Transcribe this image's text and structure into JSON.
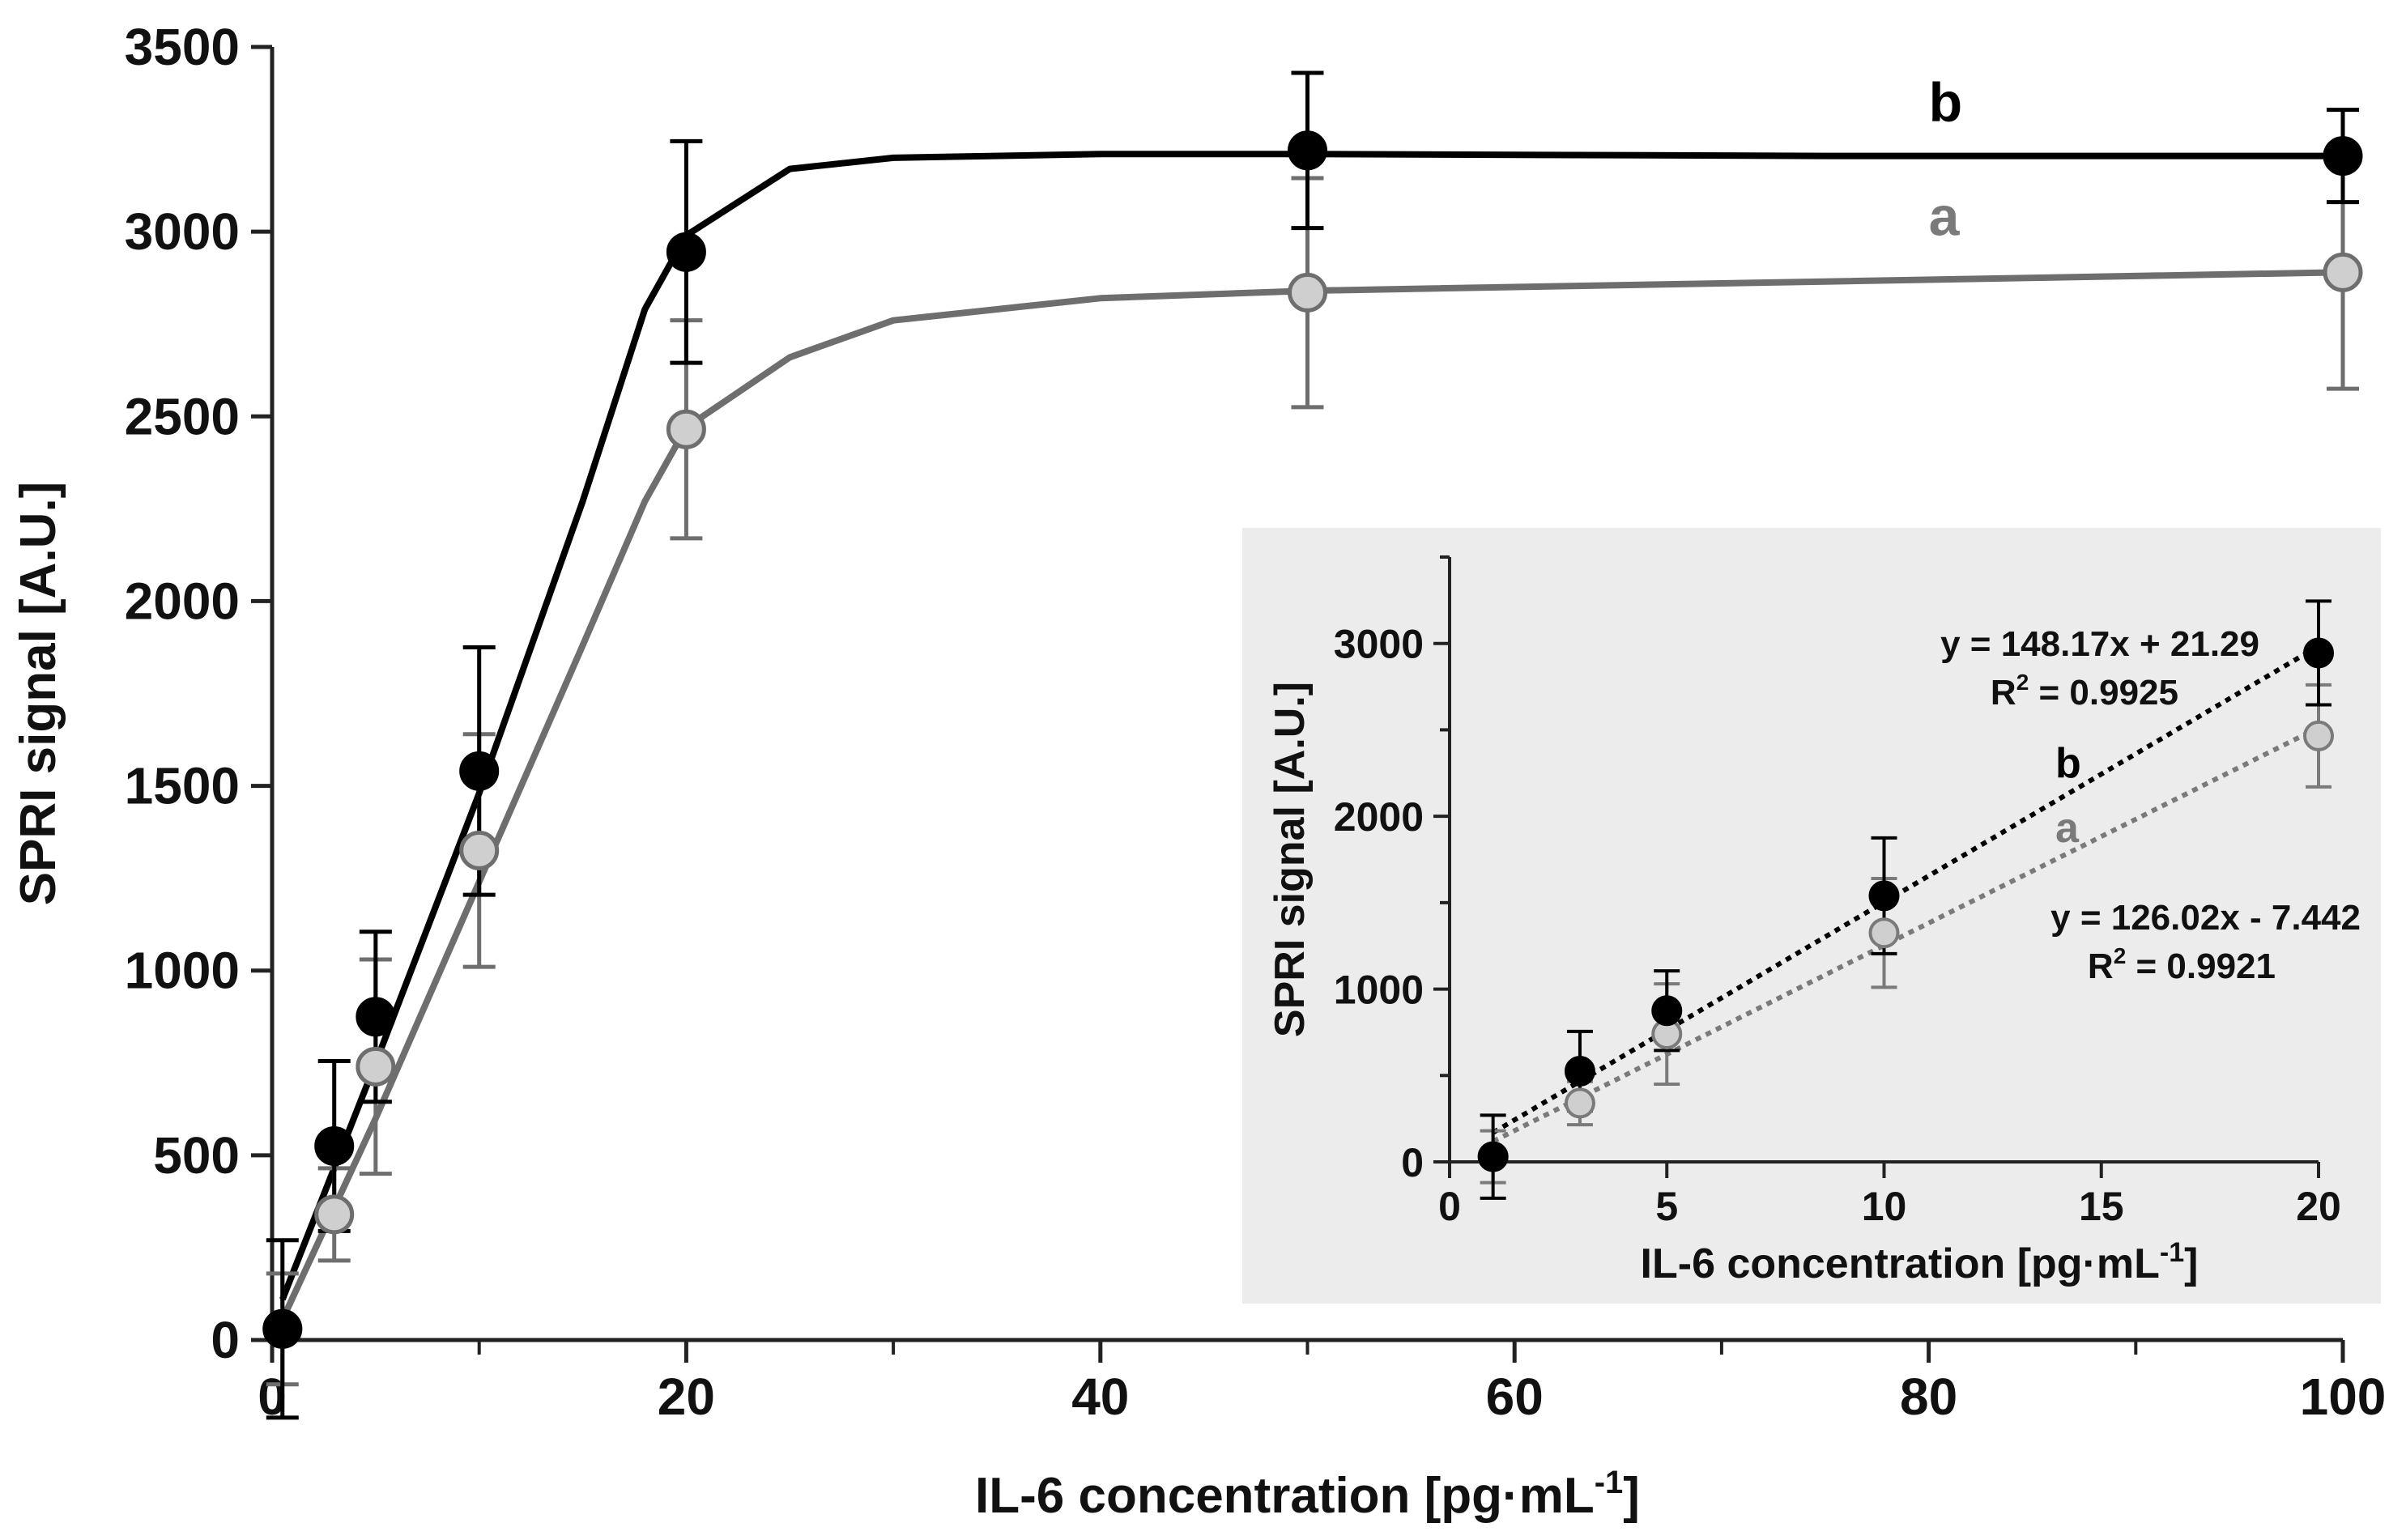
{
  "chart_data": [
    {
      "type": "scatter",
      "title": "",
      "xlabel": "IL-6 concentration [pg·mL",
      "xlabel_sup": "-1",
      "xlabel_end": "]",
      "ylabel": "SPRI signal [A.U.]",
      "xlim": [
        0,
        100
      ],
      "ylim": [
        0,
        3500
      ],
      "xticks": [
        0,
        20,
        40,
        60,
        80,
        100
      ],
      "xticks_minor": [
        10,
        30,
        50,
        70,
        90
      ],
      "yticks": [
        0,
        500,
        1000,
        1500,
        2000,
        2500,
        3000,
        3500
      ],
      "xtick_labels": [
        "0",
        "20",
        "40",
        "60",
        "80",
        "100"
      ],
      "ytick_labels": [
        "0",
        "500",
        "1000",
        "1500",
        "2000",
        "2500",
        "3000",
        "3500"
      ],
      "series": [
        {
          "name": "b",
          "color": "#000000",
          "marker_fill": "#000000",
          "x": [
            0.5,
            3,
            5,
            10,
            20,
            50,
            100
          ],
          "y": [
            30,
            525,
            875,
            1540,
            2945,
            3220,
            3205
          ],
          "err": [
            240,
            230,
            230,
            335,
            300,
            210,
            125
          ],
          "fit": [
            [
              0.5,
              110
            ],
            [
              5,
              750
            ],
            [
              10,
              1480
            ],
            [
              15,
              2270
            ],
            [
              18,
              2790
            ],
            [
              20,
              2990
            ],
            [
              25,
              3170
            ],
            [
              30,
              3200
            ],
            [
              40,
              3210
            ],
            [
              50,
              3210
            ],
            [
              75,
              3205
            ],
            [
              100,
              3205
            ]
          ]
        },
        {
          "name": "a",
          "color": "#6e6e6e",
          "marker_fill": "#cfcfcf",
          "x": [
            0.5,
            3,
            5,
            10,
            20,
            50,
            100
          ],
          "y": [
            30,
            340,
            740,
            1325,
            2465,
            2835,
            2890
          ],
          "err": [
            150,
            125,
            290,
            315,
            295,
            310,
            315
          ],
          "fit": [
            [
              0.5,
              55
            ],
            [
              5,
              600
            ],
            [
              10,
              1240
            ],
            [
              15,
              1880
            ],
            [
              18,
              2270
            ],
            [
              20,
              2470
            ],
            [
              25,
              2660
            ],
            [
              30,
              2760
            ],
            [
              40,
              2820
            ],
            [
              50,
              2840
            ],
            [
              75,
              2865
            ],
            [
              100,
              2890
            ]
          ]
        }
      ],
      "annotations": [
        "b",
        "a"
      ]
    },
    {
      "type": "scatter",
      "title": "",
      "xlabel": "IL-6 concentration [pg·mL",
      "xlabel_sup": "-1",
      "xlabel_end": "]",
      "ylabel": "SPRI signal [A.U.]",
      "xlim": [
        0,
        20
      ],
      "ylim": [
        0,
        3500
      ],
      "xticks": [
        0,
        5,
        10,
        15,
        20
      ],
      "yticks": [
        0,
        1000,
        2000,
        3000
      ],
      "xtick_labels": [
        "0",
        "5",
        "10",
        "15",
        "20"
      ],
      "ytick_labels": [
        "0",
        "1000",
        "2000",
        "3000"
      ],
      "background": "#ececec",
      "series": [
        {
          "name": "b",
          "color": "#000000",
          "marker_fill": "#000000",
          "x": [
            1,
            3,
            5,
            10,
            20
          ],
          "y": [
            30,
            525,
            875,
            1540,
            2945
          ],
          "err": [
            240,
            230,
            230,
            335,
            300
          ],
          "trend": {
            "slope": 148.17,
            "intercept": 21.29
          },
          "equation": "y = 148.17x + 21.29",
          "r2_label": "R",
          "r2_sup": "2",
          "r2_value": " = 0.9925"
        },
        {
          "name": "a",
          "color": "#7a7a7a",
          "marker_fill": "#cfcfcf",
          "x": [
            1,
            3,
            5,
            10,
            20
          ],
          "y": [
            30,
            340,
            740,
            1325,
            2465
          ],
          "err": [
            150,
            125,
            290,
            315,
            295
          ],
          "trend": {
            "slope": 126.02,
            "intercept": -7.442
          },
          "equation": "y = 126.02x - 7.442",
          "r2_label": "R",
          "r2_sup": "2",
          "r2_value": " = 0.9921"
        }
      ]
    }
  ]
}
